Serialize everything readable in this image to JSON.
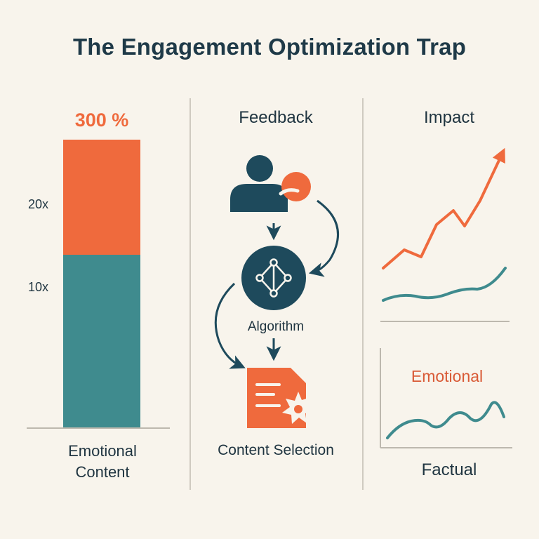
{
  "title": "The Engagement Optimization Trap",
  "colors": {
    "background": "#f8f4ec",
    "orange": "#ef6a3d",
    "teal": "#3f8b8e",
    "navy": "#1e4a5c",
    "text": "#1f3440"
  },
  "bar_panel": {
    "top_label": "300 %",
    "tick_upper": "20x",
    "tick_lower": "10x",
    "caption_line1": "Emotional",
    "caption_line2": "Content"
  },
  "feedback_panel": {
    "heading": "Feedback",
    "algorithm_label": "Algorithm",
    "content_label": "Content Selection",
    "icons": [
      "user-icon",
      "engagement-dot-icon",
      "network-icon",
      "document-icon",
      "burst-icon"
    ]
  },
  "impact_panel": {
    "heading": "Impact",
    "emotional_label": "Emotional",
    "factual_label": "Factual"
  }
}
